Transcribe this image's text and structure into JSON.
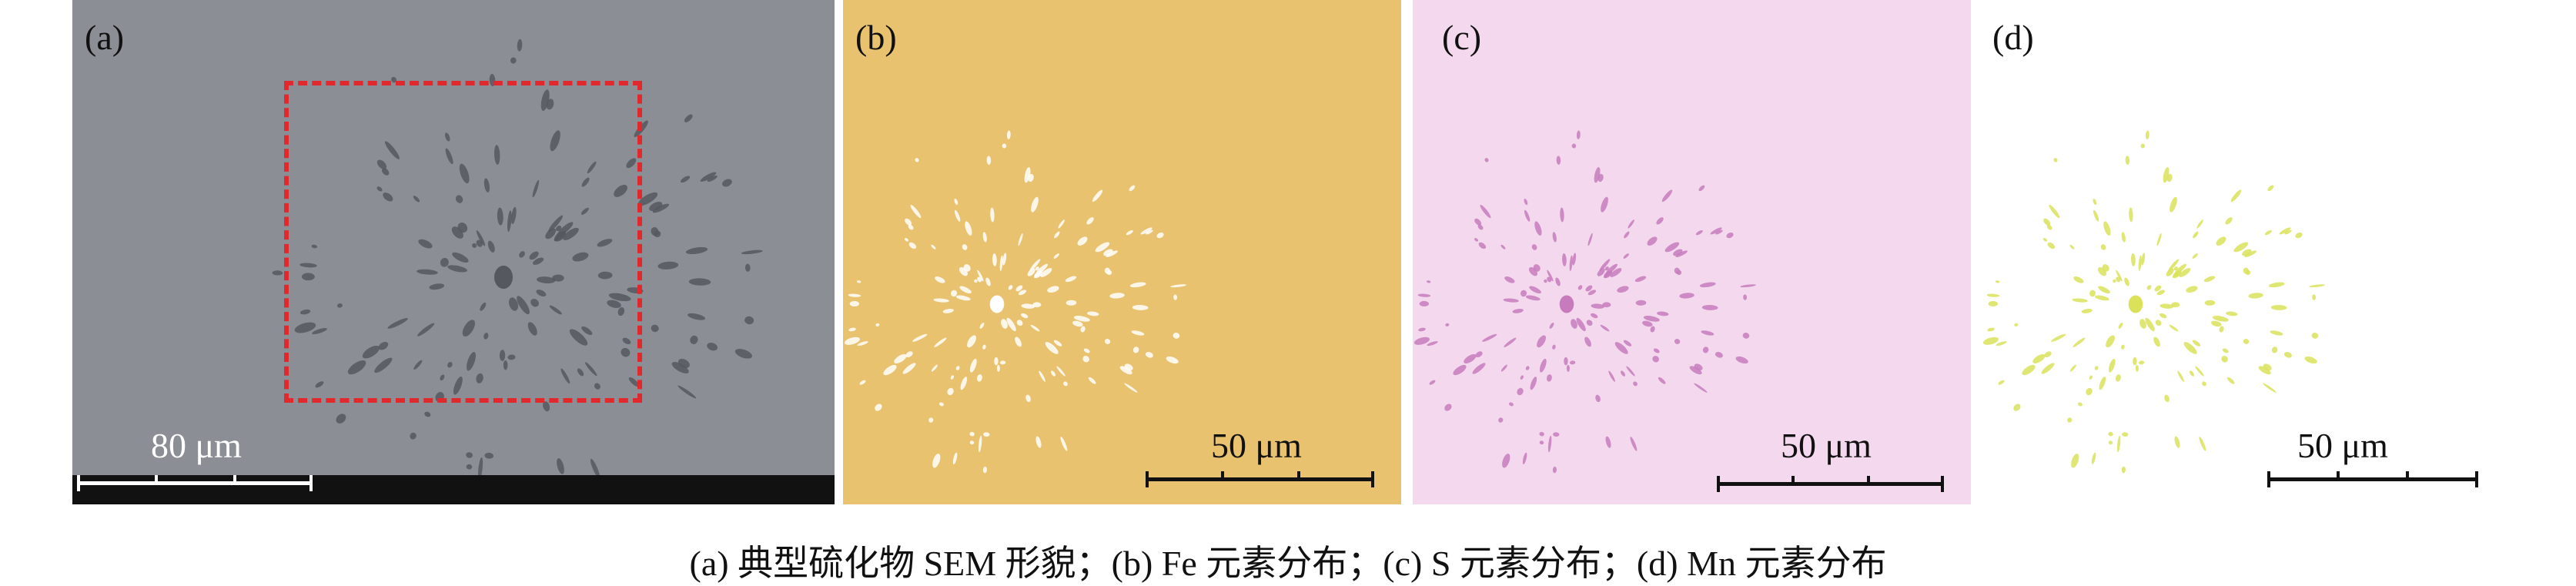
{
  "panels": [
    {
      "label": "(a)",
      "scale_text": "80 μm",
      "background": "#8b8e94",
      "particle_color": "#55585e"
    },
    {
      "label": "(b)",
      "scale_text": "50 μm",
      "background": "#e8c26f",
      "particle_color": "#ffffff"
    },
    {
      "label": "(c)",
      "scale_text": "50 μm",
      "background": "#f4d9ee",
      "particle_color": "#c77bbd"
    },
    {
      "label": "(d)",
      "scale_text": "50 μm",
      "background": "#ffffff",
      "particle_color": "#dbe25a"
    }
  ],
  "highlight_box_color": "#e0282d",
  "caption": "(a) 典型硫化物 SEM 形貌；(b) Fe 元素分布；(c) S 元素分布；(d) Mn 元素分布"
}
